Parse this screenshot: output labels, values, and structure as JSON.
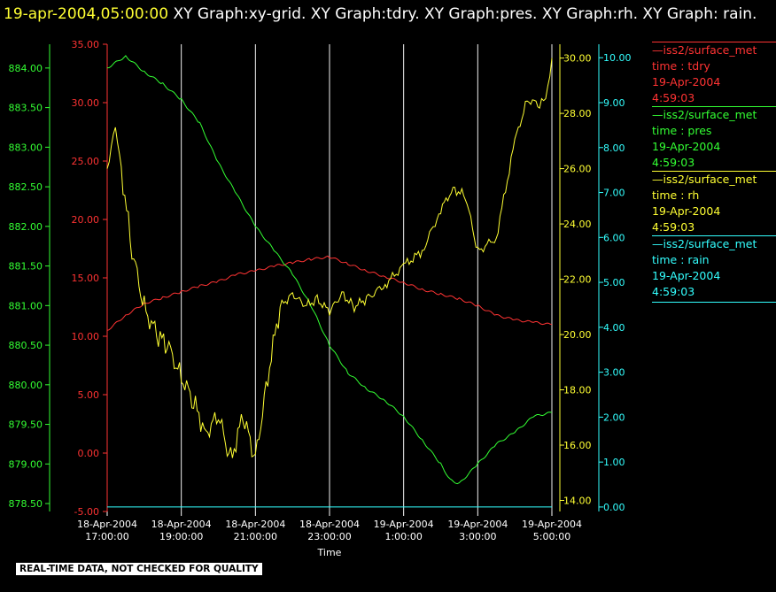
{
  "header": {
    "timestamp": "19-apr-2004,05:00:00",
    "rest": "XY Graph:xy-grid.  XY Graph:tdry.  XY Graph:pres.  XY Graph:rh.  XY Graph: rain."
  },
  "disclaimer": "REAL-TIME DATA, NOT CHECKED FOR QUALITY",
  "legend": [
    {
      "name": "iss2/surface_met",
      "label": "time : tdry",
      "date": "19-Apr-2004",
      "time": "4:59:03",
      "color": "#ff3333"
    },
    {
      "name": "iss2/surface_met",
      "label": "time : pres",
      "date": "19-Apr-2004",
      "time": "4:59:03",
      "color": "#33ff33"
    },
    {
      "name": "iss2/surface_met",
      "label": "time : rh",
      "date": "19-Apr-2004",
      "time": "4:59:03",
      "color": "#ffff33"
    },
    {
      "name": "iss2/surface_met",
      "label": "time : rain",
      "date": "19-Apr-2004",
      "time": "4:59:03",
      "color": "#33ffff"
    }
  ],
  "chart_data": {
    "type": "line",
    "xlabel": "Time",
    "x_ticks": [
      [
        "18-Apr-2004",
        "17:00:00"
      ],
      [
        "18-Apr-2004",
        "19:00:00"
      ],
      [
        "18-Apr-2004",
        "21:00:00"
      ],
      [
        "18-Apr-2004",
        "23:00:00"
      ],
      [
        "19-Apr-2004",
        "1:00:00"
      ],
      [
        "19-Apr-2004",
        "3:00:00"
      ],
      [
        "19-Apr-2004",
        "5:00:00"
      ]
    ],
    "xlim": [
      "18-Apr-2004 17:00",
      "19-Apr-2004 05:00"
    ],
    "grid": "vertical lines at x ticks",
    "axes": {
      "tdry": {
        "color": "#ff3333",
        "ylim": [
          -5,
          35
        ],
        "ticks": [
          "35.00",
          "30.00",
          "25.00",
          "20.00",
          "15.00",
          "10.00",
          "5.00",
          "0.00",
          "-5.00"
        ]
      },
      "pres": {
        "color": "#33ff33",
        "ylim": [
          878.4,
          884.3
        ],
        "ticks": [
          "884.00",
          "883.50",
          "883.00",
          "882.50",
          "882.00",
          "881.50",
          "881.00",
          "880.50",
          "880.00",
          "879.50",
          "879.00",
          "878.50"
        ]
      },
      "rh": {
        "color": "#ffff33",
        "ylim": [
          13.6,
          30.5
        ],
        "ticks": [
          "30.00",
          "28.00",
          "26.00",
          "24.00",
          "22.00",
          "20.00",
          "18.00",
          "16.00",
          "14.00"
        ]
      },
      "rain": {
        "color": "#33ffff",
        "ylim": [
          -0.1,
          10.3
        ],
        "ticks": [
          "10.00",
          "9.00",
          "8.00",
          "7.00",
          "6.00",
          "5.00",
          "4.00",
          "3.00",
          "2.00",
          "1.00",
          "0.00"
        ]
      }
    },
    "series": [
      {
        "name": "tdry",
        "axis": "tdry",
        "color": "#ff3333",
        "x": [
          "18-Apr-2004 17:00",
          "18-Apr-2004 17:30",
          "18-Apr-2004 18:00",
          "18-Apr-2004 18:30",
          "18-Apr-2004 19:00",
          "18-Apr-2004 19:30",
          "18-Apr-2004 20:00",
          "18-Apr-2004 20:30",
          "18-Apr-2004 21:00",
          "18-Apr-2004 21:30",
          "18-Apr-2004 22:00",
          "18-Apr-2004 22:30",
          "18-Apr-2004 23:00",
          "18-Apr-2004 23:30",
          "19-Apr-2004 00:00",
          "19-Apr-2004 00:30",
          "19-Apr-2004 01:00",
          "19-Apr-2004 01:30",
          "19-Apr-2004 02:00",
          "19-Apr-2004 02:30",
          "19-Apr-2004 03:00",
          "19-Apr-2004 03:30",
          "19-Apr-2004 04:00",
          "19-Apr-2004 04:30",
          "19-Apr-2004 05:00"
        ],
        "values": [
          10.5,
          11.8,
          12.8,
          13.3,
          13.8,
          14.3,
          14.7,
          15.3,
          15.6,
          16.0,
          16.3,
          16.6,
          16.8,
          16.2,
          15.6,
          15.1,
          14.6,
          14.0,
          13.6,
          13.2,
          12.6,
          11.8,
          11.4,
          11.2,
          11.0
        ]
      },
      {
        "name": "pres",
        "axis": "pres",
        "color": "#33ff33",
        "x": [
          "18-Apr-2004 17:00",
          "18-Apr-2004 17:30",
          "18-Apr-2004 18:00",
          "18-Apr-2004 18:30",
          "18-Apr-2004 19:00",
          "18-Apr-2004 19:30",
          "18-Apr-2004 20:00",
          "18-Apr-2004 20:30",
          "18-Apr-2004 21:00",
          "18-Apr-2004 21:30",
          "18-Apr-2004 22:00",
          "18-Apr-2004 22:30",
          "18-Apr-2004 23:00",
          "18-Apr-2004 23:30",
          "19-Apr-2004 00:00",
          "19-Apr-2004 00:30",
          "19-Apr-2004 01:00",
          "19-Apr-2004 01:30",
          "19-Apr-2004 02:00",
          "19-Apr-2004 02:15",
          "19-Apr-2004 02:30",
          "19-Apr-2004 03:00",
          "19-Apr-2004 03:30",
          "19-Apr-2004 04:00",
          "19-Apr-2004 04:30",
          "19-Apr-2004 05:00"
        ],
        "values": [
          884.0,
          884.15,
          883.95,
          883.8,
          883.6,
          883.3,
          882.8,
          882.4,
          882.0,
          881.7,
          881.4,
          881.0,
          880.5,
          880.15,
          879.95,
          879.8,
          879.6,
          879.3,
          879.0,
          878.8,
          878.75,
          879.0,
          879.25,
          879.4,
          879.6,
          879.65
        ]
      },
      {
        "name": "rh",
        "axis": "rh",
        "color": "#ffff33",
        "x": [
          "18-Apr-2004 17:00",
          "18-Apr-2004 17:10",
          "18-Apr-2004 17:20",
          "18-Apr-2004 17:40",
          "18-Apr-2004 18:00",
          "18-Apr-2004 18:20",
          "18-Apr-2004 18:40",
          "18-Apr-2004 19:00",
          "18-Apr-2004 19:20",
          "18-Apr-2004 19:40",
          "18-Apr-2004 20:00",
          "18-Apr-2004 20:20",
          "18-Apr-2004 20:40",
          "18-Apr-2004 21:00",
          "18-Apr-2004 21:20",
          "18-Apr-2004 21:40",
          "18-Apr-2004 22:00",
          "18-Apr-2004 22:20",
          "18-Apr-2004 22:40",
          "18-Apr-2004 23:00",
          "18-Apr-2004 23:20",
          "18-Apr-2004 23:40",
          "19-Apr-2004 00:00",
          "19-Apr-2004 00:30",
          "19-Apr-2004 01:00",
          "19-Apr-2004 01:30",
          "19-Apr-2004 02:00",
          "19-Apr-2004 02:20",
          "19-Apr-2004 02:40",
          "19-Apr-2004 03:00",
          "19-Apr-2004 03:30",
          "19-Apr-2004 04:00",
          "19-Apr-2004 04:20",
          "19-Apr-2004 04:40",
          "19-Apr-2004 04:50",
          "19-Apr-2004 05:00"
        ],
        "values": [
          26.0,
          27.5,
          26.5,
          23.0,
          21.0,
          20.0,
          19.5,
          18.5,
          17.5,
          16.5,
          17.0,
          15.5,
          17.0,
          15.5,
          18.5,
          21.0,
          21.5,
          21.0,
          21.3,
          20.8,
          21.5,
          21.0,
          21.3,
          21.8,
          22.5,
          23.0,
          24.5,
          25.3,
          25.0,
          23.0,
          23.5,
          27.0,
          28.5,
          28.3,
          28.5,
          30.0
        ]
      },
      {
        "name": "rain",
        "axis": "rain",
        "color": "#33ffff",
        "x": [
          "18-Apr-2004 17:00",
          "19-Apr-2004 05:00"
        ],
        "values": [
          0.0,
          0.0
        ]
      }
    ]
  }
}
